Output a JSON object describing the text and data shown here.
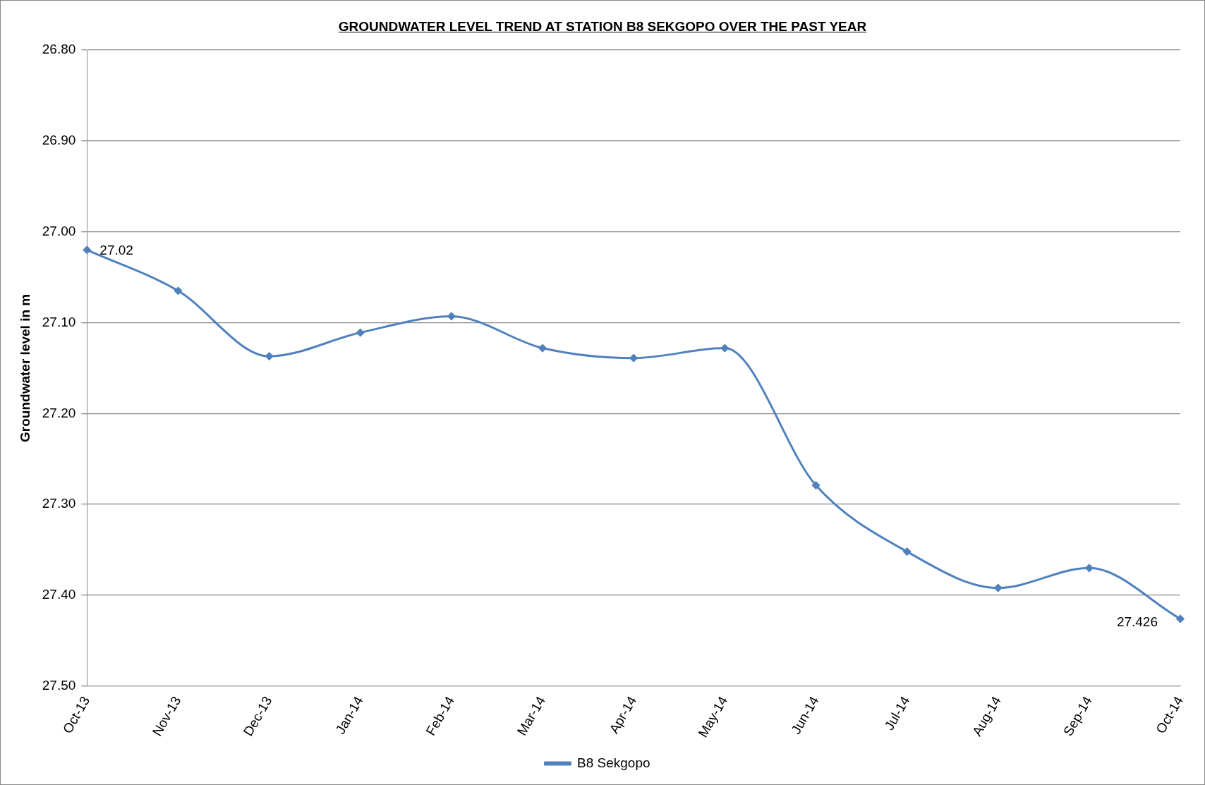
{
  "chart_data": {
    "type": "line",
    "title": "GROUNDWATER LEVEL TREND AT STATION B8 SEKGOPO OVER THE PAST YEAR",
    "ylabel": "Groundwater level in m",
    "categories": [
      "Oct-13",
      "Nov-13",
      "Dec-13",
      "Jan-14",
      "Feb-14",
      "Mar-14",
      "Apr-14",
      "May-14",
      "Jun-14",
      "Jul-14",
      "Aug-14",
      "Sep-14",
      "Oct-14"
    ],
    "series": [
      {
        "name": "B8 Sekgopo",
        "color": "#4f81bd",
        "values": [
          27.02,
          27.065,
          27.137,
          27.111,
          27.093,
          27.128,
          27.139,
          27.128,
          27.279,
          27.352,
          27.392,
          27.37,
          27.426
        ],
        "value_labels": [
          "27.02",
          null,
          null,
          null,
          null,
          null,
          null,
          null,
          null,
          null,
          null,
          null,
          "27.426"
        ]
      }
    ],
    "ylim": [
      27.5,
      26.8
    ],
    "yticks": [
      {
        "value": 26.8,
        "label": "26.80"
      },
      {
        "value": 26.9,
        "label": "26.90"
      },
      {
        "value": 27.0,
        "label": "27.00"
      },
      {
        "value": 27.1,
        "label": "27.10"
      },
      {
        "value": 27.2,
        "label": "27.20"
      },
      {
        "value": 27.3,
        "label": "27.30"
      },
      {
        "value": 27.4,
        "label": "27.40"
      },
      {
        "value": 27.5,
        "label": "27.50"
      }
    ],
    "grid": "y",
    "legend": "bottom",
    "marker": "diamond",
    "line_style": "solid"
  }
}
